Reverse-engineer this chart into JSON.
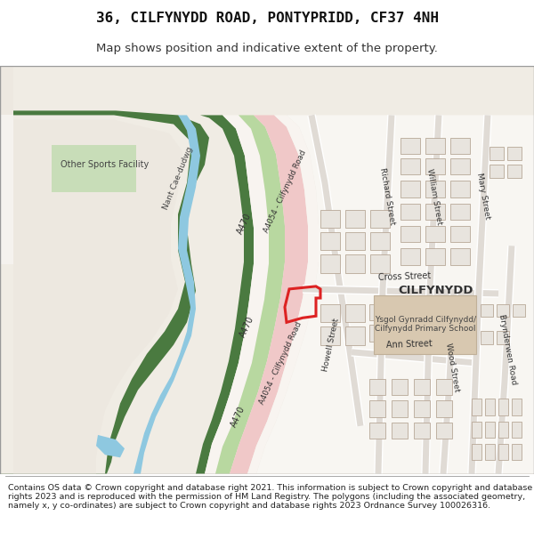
{
  "title": "36, CILFYNYDD ROAD, PONTYPRIDD, CF37 4NH",
  "subtitle": "Map shows position and indicative extent of the property.",
  "footer_text": "Contains OS data © Crown copyright and database right 2021. This information is subject to Crown copyright and database rights 2023 and is reproduced with the permission of HM Land Registry. The polygons (including the associated geometry, namely x, y co-ordinates) are subject to Crown copyright and database rights 2023 Ordnance Survey 100026316.",
  "bg_color": "#f0ece4",
  "white": "#ffffff",
  "green_dark": "#4a7a40",
  "green_light": "#b8d4a8",
  "water_blue": "#8ec8e0",
  "road_pink": "#f0c8c8",
  "road_green": "#c8e0b8",
  "building_fill": "#e8e0d8",
  "building_edge": "#c0b098",
  "school_fill": "#d8c8b0",
  "plot_red": "#dd2222",
  "text_dark": "#444444",
  "text_medium": "#666666"
}
